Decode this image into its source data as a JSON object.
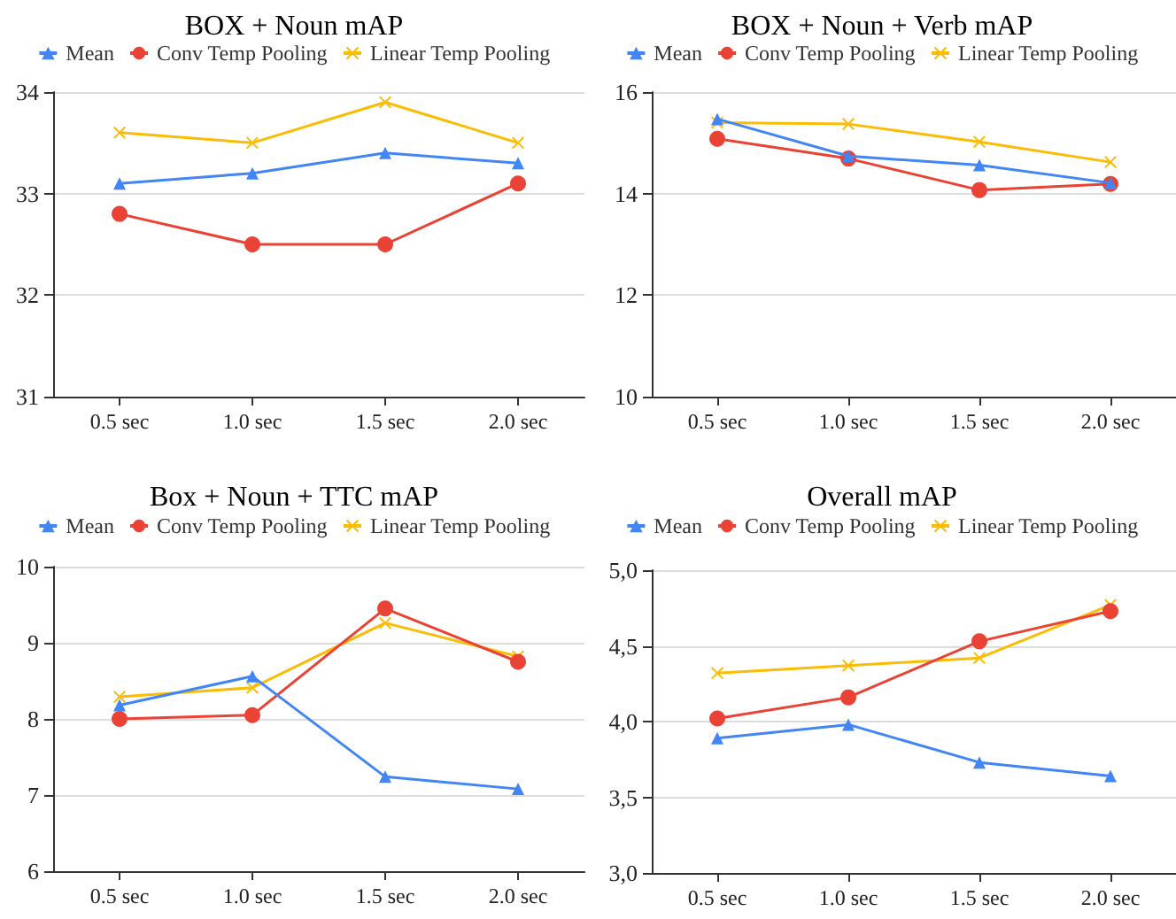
{
  "chart_data": [
    {
      "type": "line",
      "title": "BOX + Noun mAP",
      "categories": [
        "0.5 sec",
        "1.0 sec",
        "1.5 sec",
        "2.0 sec"
      ],
      "ylim": [
        31,
        34
      ],
      "yticks": [
        31,
        32,
        33,
        34
      ],
      "grid": "y",
      "legend": "top",
      "series": [
        {
          "name": "Mean",
          "color": "#4285f4",
          "marker": "triangle",
          "values": [
            33.1,
            33.2,
            33.4,
            33.3
          ]
        },
        {
          "name": "Conv Temp Pooling",
          "color": "#ea4335",
          "marker": "circle",
          "values": [
            32.8,
            32.5,
            32.5,
            33.1
          ]
        },
        {
          "name": "Linear Temp Pooling",
          "color": "#fbbc04",
          "marker": "cross",
          "values": [
            33.6,
            33.5,
            33.9,
            33.5
          ]
        }
      ]
    },
    {
      "type": "line",
      "title": "BOX + Noun + Verb mAP",
      "categories": [
        "0.5 sec",
        "1.0 sec",
        "1.5 sec",
        "2.0 sec"
      ],
      "ylim": [
        10,
        16
      ],
      "yticks": [
        10,
        12,
        14,
        16
      ],
      "grid": "y",
      "legend": "top",
      "series": [
        {
          "name": "Mean",
          "color": "#4285f4",
          "marker": "triangle",
          "values": [
            15.47,
            14.74,
            14.56,
            14.21
          ]
        },
        {
          "name": "Conv Temp Pooling",
          "color": "#ea4335",
          "marker": "circle",
          "values": [
            15.08,
            14.69,
            14.07,
            14.19
          ]
        },
        {
          "name": "Linear Temp Pooling",
          "color": "#fbbc04",
          "marker": "cross",
          "values": [
            15.4,
            15.37,
            15.02,
            14.62
          ]
        }
      ]
    },
    {
      "type": "line",
      "title": "Box + Noun + TTC mAP",
      "categories": [
        "0.5 sec",
        "1.0 sec",
        "1.5 sec",
        "2.0 sec"
      ],
      "ylim": [
        6,
        10
      ],
      "yticks": [
        6,
        7,
        8,
        9,
        10
      ],
      "grid": "y",
      "legend": "top",
      "series": [
        {
          "name": "Mean",
          "color": "#4285f4",
          "marker": "triangle",
          "values": [
            8.18,
            8.56,
            7.24,
            7.08
          ]
        },
        {
          "name": "Conv Temp Pooling",
          "color": "#ea4335",
          "marker": "circle",
          "values": [
            8.0,
            8.05,
            9.45,
            8.75
          ]
        },
        {
          "name": "Linear Temp Pooling",
          "color": "#fbbc04",
          "marker": "cross",
          "values": [
            8.29,
            8.41,
            9.26,
            8.82
          ]
        }
      ]
    },
    {
      "type": "line",
      "title": "Overall mAP",
      "categories": [
        "0.5 sec",
        "1.0 sec",
        "1.5 sec",
        "2.0 sec"
      ],
      "ylim": [
        3,
        5
      ],
      "yticks": [
        {
          "value": 3,
          "label": "3,0"
        },
        {
          "value": 3.5,
          "label": "3,5"
        },
        {
          "value": 4,
          "label": "4,0"
        },
        {
          "value": 4.5,
          "label": "4,5"
        },
        {
          "value": 5,
          "label": "5,0"
        }
      ],
      "grid": "y",
      "legend": "top",
      "series": [
        {
          "name": "Mean",
          "color": "#4285f4",
          "marker": "triangle",
          "values": [
            3.89,
            3.98,
            3.73,
            3.64
          ]
        },
        {
          "name": "Conv Temp Pooling",
          "color": "#ea4335",
          "marker": "circle",
          "values": [
            4.02,
            4.16,
            4.53,
            4.73
          ]
        },
        {
          "name": "Linear Temp Pooling",
          "color": "#fbbc04",
          "marker": "cross",
          "values": [
            4.32,
            4.37,
            4.42,
            4.77
          ]
        }
      ]
    }
  ]
}
